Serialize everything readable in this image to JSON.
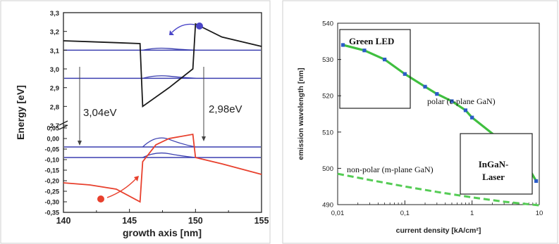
{
  "colors": {
    "conduction_band": "#1a1a1a",
    "valence_band": "#e8402d",
    "energy_levels": "#3b3fb0",
    "electron": "#4a45c8",
    "hole": "#e8402d",
    "polar_line": "#3fbf3f",
    "polar_markers": "#2b5cc7",
    "nonpolar_line": "#55cc55"
  },
  "chart_data": [
    {
      "type": "line",
      "xlabel": "growth axis [nm]",
      "ylabel": "Energy [eV]",
      "xlim": [
        140,
        155
      ],
      "x_ticks": [
        "140",
        "145",
        "150",
        "155"
      ],
      "y_ticks_upper": [
        "3,3",
        "3,2",
        "3,1",
        "3,0",
        "2,9",
        "2,8",
        "2,7"
      ],
      "y_ticks_lower": [
        "0,05",
        "0,00",
        "-0,05",
        "-0,10",
        "-0,15",
        "-0,20",
        "-0,25",
        "-0,30",
        "-0,35"
      ],
      "axis_break": true,
      "annotations": [
        "3,04eV",
        "2,98eV"
      ],
      "series": [
        {
          "values": [
            [
              140,
              3.15
            ],
            [
              142,
              3.145
            ],
            [
              144,
              3.14
            ],
            [
              145.8,
              3.135
            ],
            [
              146,
              2.8
            ],
            [
              148,
              2.9
            ],
            [
              149.8,
              3.0
            ],
            [
              150,
              3.24
            ],
            [
              152,
              3.17
            ],
            [
              155,
              3.12
            ]
          ]
        },
        {
          "values": [
            [
              140,
              -0.21
            ],
            [
              142,
              -0.22
            ],
            [
              144,
              -0.24
            ],
            [
              145.8,
              -0.3
            ],
            [
              146,
              -0.11
            ],
            [
              147,
              -0.03
            ],
            [
              148,
              0.0
            ],
            [
              149.8,
              0.02
            ],
            [
              150,
              -0.09
            ],
            [
              152,
              -0.12
            ],
            [
              155,
              -0.17
            ]
          ]
        }
      ],
      "levels": [
        3.1,
        2.95,
        -0.04,
        -0.09
      ]
    },
    {
      "type": "line",
      "xlabel": "current density [kA/cm²]",
      "ylabel": "emission wavelength [nm]",
      "x_scale": "log",
      "xlim": [
        0.01,
        10
      ],
      "ylim": [
        490,
        540
      ],
      "x_ticks": [
        "0,01",
        "0,1",
        "1",
        "10"
      ],
      "y_ticks": [
        "490",
        "500",
        "510",
        "520",
        "530",
        "540"
      ],
      "annotations": [
        "Green LED",
        "polar (c-plane GaN)",
        "non-polar (m-plane GaN)",
        "InGaN-Laser"
      ],
      "series": [
        {
          "x": [
            0.012,
            0.025,
            0.05,
            0.1,
            0.2,
            0.3,
            0.5,
            0.8,
            1.0,
            3.0,
            5.0,
            7.0,
            9.0
          ],
          "values": [
            534,
            532.5,
            530,
            526,
            522.5,
            520.5,
            518.5,
            516,
            514,
            507,
            503,
            500,
            496.5
          ]
        },
        {
          "x": [
            0.01,
            0.03,
            0.1,
            0.3,
            1.0,
            3.0,
            10
          ],
          "values": [
            498.5,
            496.8,
            495,
            493.5,
            492,
            490.8,
            489.8
          ]
        }
      ]
    }
  ]
}
